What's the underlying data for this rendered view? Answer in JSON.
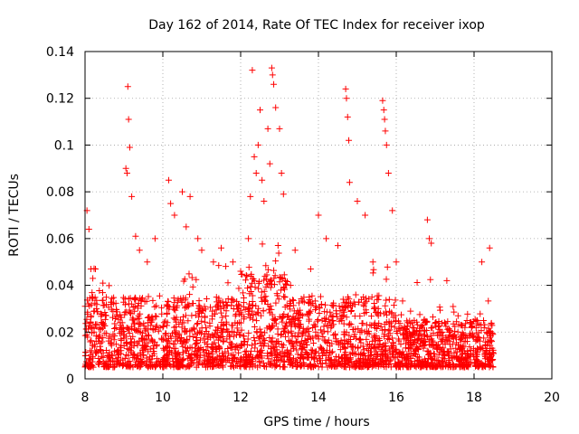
{
  "chart_data": {
    "type": "scatter",
    "title": "Day 162 of 2014, Rate Of TEC Index for receiver ixop",
    "xlabel": "GPS time / hours",
    "ylabel": "ROTI / TECUs",
    "xlim": [
      8,
      20
    ],
    "ylim": [
      0,
      0.14
    ],
    "xticks": [
      8,
      10,
      12,
      14,
      16,
      18,
      20
    ],
    "yticks": [
      0,
      0.02,
      0.04,
      0.06,
      0.08,
      0.1,
      0.12,
      0.14
    ],
    "ytick_labels": [
      "0",
      "0.02",
      "0.04",
      "0.06",
      "0.08",
      "0.1",
      "0.12",
      "0.14"
    ],
    "grid": true,
    "marker": "+",
    "color": "#ff0000",
    "data_range_x": [
      8.0,
      18.5
    ],
    "series": [
      {
        "name": "ROTI",
        "x": [
          8.05,
          8.1,
          8.15,
          8.2,
          9.05,
          9.08,
          9.1,
          9.12,
          9.15,
          9.2,
          9.3,
          9.4,
          9.6,
          9.8,
          10.15,
          10.2,
          10.3,
          10.5,
          10.6,
          10.7,
          10.9,
          11.0,
          11.3,
          11.5,
          11.8,
          12.0,
          12.2,
          12.25,
          12.3,
          12.35,
          12.4,
          12.45,
          12.5,
          12.55,
          12.6,
          12.7,
          12.75,
          12.8,
          12.82,
          12.85,
          12.9,
          13.0,
          13.05,
          13.1,
          13.4,
          13.8,
          14.0,
          14.2,
          14.5,
          14.7,
          14.72,
          14.75,
          14.78,
          14.8,
          15.0,
          15.2,
          15.4,
          15.65,
          15.68,
          15.7,
          15.72,
          15.75,
          15.8,
          15.9,
          16.0,
          16.8,
          16.85,
          16.9,
          17.3,
          18.2,
          18.4
        ],
        "y": [
          0.072,
          0.064,
          0.047,
          0.043,
          0.09,
          0.088,
          0.125,
          0.111,
          0.099,
          0.078,
          0.061,
          0.055,
          0.05,
          0.06,
          0.085,
          0.075,
          0.07,
          0.08,
          0.065,
          0.078,
          0.06,
          0.055,
          0.05,
          0.056,
          0.05,
          0.046,
          0.06,
          0.078,
          0.132,
          0.095,
          0.088,
          0.1,
          0.115,
          0.085,
          0.076,
          0.107,
          0.092,
          0.133,
          0.13,
          0.126,
          0.116,
          0.107,
          0.088,
          0.079,
          0.055,
          0.047,
          0.07,
          0.06,
          0.057,
          0.124,
          0.12,
          0.112,
          0.102,
          0.084,
          0.076,
          0.07,
          0.05,
          0.119,
          0.115,
          0.111,
          0.106,
          0.1,
          0.088,
          0.072,
          0.05,
          0.068,
          0.06,
          0.058,
          0.042,
          0.05,
          0.056
        ]
      }
    ],
    "background_band": {
      "note": "dense cloud of points between x 8.0 and 18.5, mostly y 0.005 to 0.04",
      "baseline_low": 0.005,
      "typical_high": 0.035
    }
  }
}
